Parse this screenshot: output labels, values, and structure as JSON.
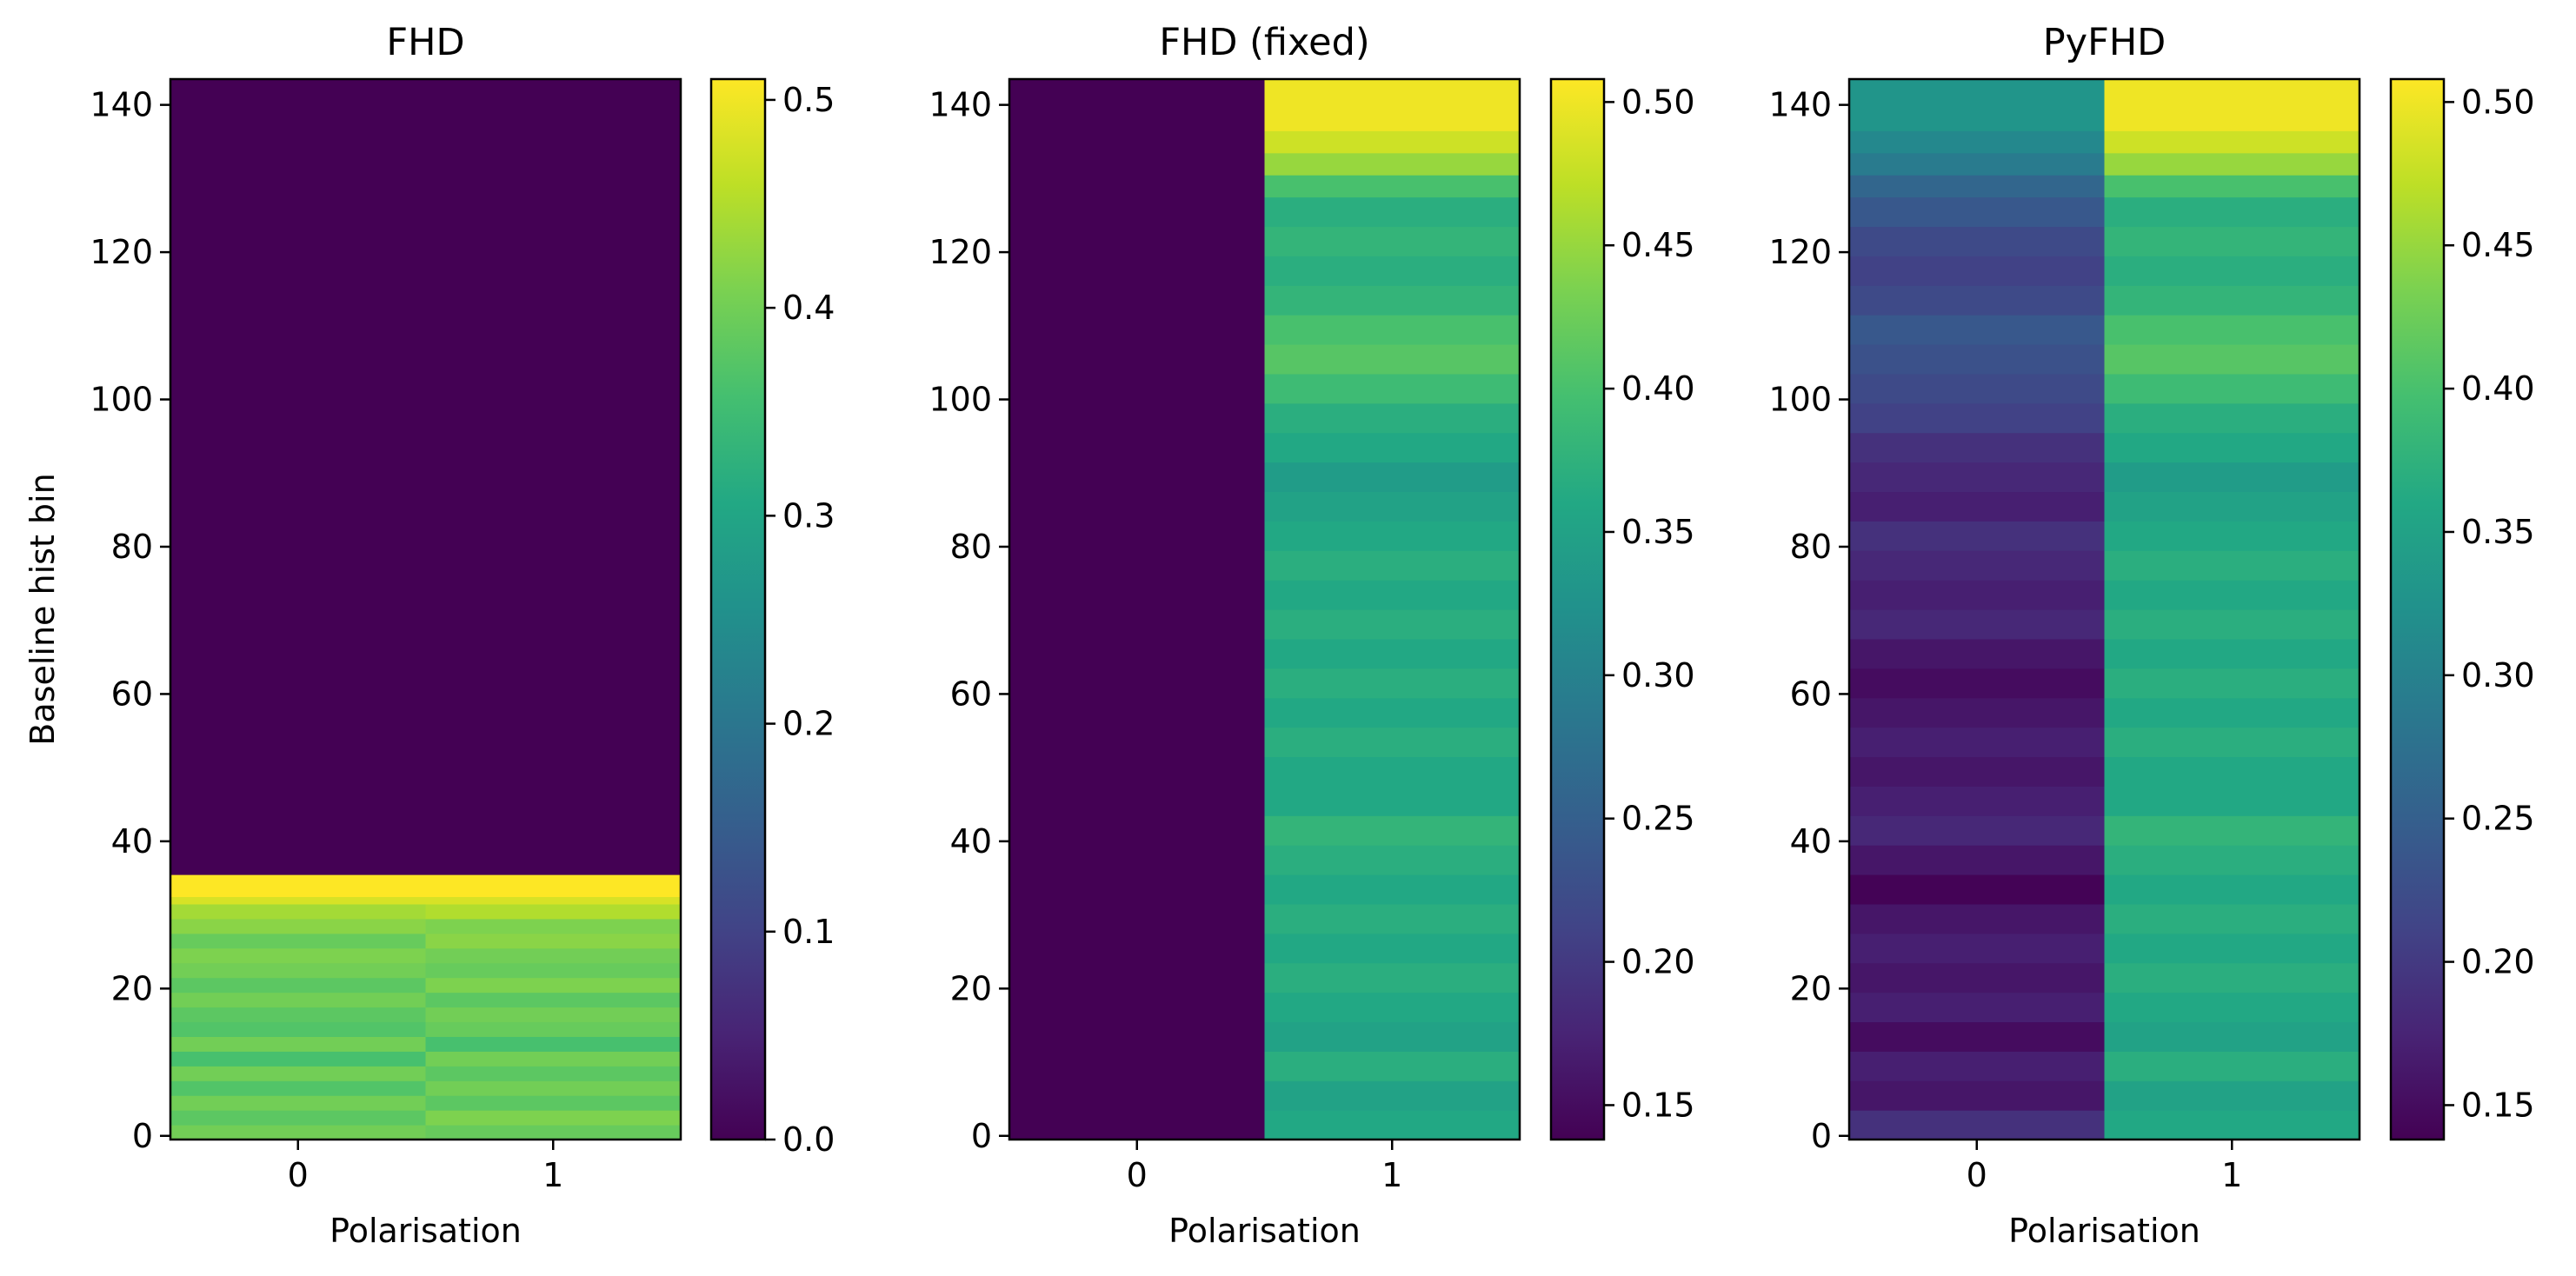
{
  "chart_data": [
    {
      "type": "heatmap",
      "title": "FHD",
      "xlabel": "Polarisation",
      "ylabel": "Baseline hist bin",
      "xticks": [
        "0",
        "1"
      ],
      "yticks": [
        "0",
        "20",
        "40",
        "60",
        "80",
        "100",
        "120",
        "140"
      ],
      "ylim": [
        -0.5,
        143.5
      ],
      "colormap": "viridis",
      "colorbar": {
        "range": [
          0.0,
          0.51
        ],
        "ticks": [
          0.0,
          0.1,
          0.2,
          0.3,
          0.4,
          0.5
        ],
        "tick_labels": [
          "0.0",
          "0.1",
          "0.2",
          "0.3",
          "0.4",
          "0.5"
        ]
      },
      "grid": false,
      "columns": [
        {
          "x": 0,
          "segments": [
            {
              "from": 0,
              "to": 2,
              "value": 0.4
            },
            {
              "from": 2,
              "to": 4,
              "value": 0.38
            },
            {
              "from": 4,
              "to": 6,
              "value": 0.4
            },
            {
              "from": 6,
              "to": 8,
              "value": 0.37
            },
            {
              "from": 8,
              "to": 10,
              "value": 0.4
            },
            {
              "from": 10,
              "to": 12,
              "value": 0.36
            },
            {
              "from": 12,
              "to": 14,
              "value": 0.4
            },
            {
              "from": 14,
              "to": 16,
              "value": 0.37
            },
            {
              "from": 16,
              "to": 18,
              "value": 0.38
            },
            {
              "from": 18,
              "to": 20,
              "value": 0.4
            },
            {
              "from": 20,
              "to": 22,
              "value": 0.38
            },
            {
              "from": 22,
              "to": 24,
              "value": 0.4
            },
            {
              "from": 24,
              "to": 26,
              "value": 0.41
            },
            {
              "from": 26,
              "to": 28,
              "value": 0.39
            },
            {
              "from": 28,
              "to": 30,
              "value": 0.42
            },
            {
              "from": 30,
              "to": 32,
              "value": 0.44
            },
            {
              "from": 32,
              "to": 33,
              "value": 0.48
            },
            {
              "from": 33,
              "to": 36,
              "value": 0.51
            },
            {
              "from": 36,
              "to": 144,
              "value": 0.0
            }
          ]
        },
        {
          "x": 1,
          "segments": [
            {
              "from": 0,
              "to": 2,
              "value": 0.39
            },
            {
              "from": 2,
              "to": 4,
              "value": 0.41
            },
            {
              "from": 4,
              "to": 6,
              "value": 0.38
            },
            {
              "from": 6,
              "to": 8,
              "value": 0.4
            },
            {
              "from": 8,
              "to": 10,
              "value": 0.38
            },
            {
              "from": 10,
              "to": 12,
              "value": 0.4
            },
            {
              "from": 12,
              "to": 14,
              "value": 0.36
            },
            {
              "from": 14,
              "to": 16,
              "value": 0.39
            },
            {
              "from": 16,
              "to": 18,
              "value": 0.4
            },
            {
              "from": 18,
              "to": 20,
              "value": 0.38
            },
            {
              "from": 20,
              "to": 22,
              "value": 0.41
            },
            {
              "from": 22,
              "to": 24,
              "value": 0.39
            },
            {
              "from": 24,
              "to": 26,
              "value": 0.4
            },
            {
              "from": 26,
              "to": 28,
              "value": 0.42
            },
            {
              "from": 28,
              "to": 30,
              "value": 0.41
            },
            {
              "from": 30,
              "to": 32,
              "value": 0.45
            },
            {
              "from": 32,
              "to": 33,
              "value": 0.48
            },
            {
              "from": 33,
              "to": 36,
              "value": 0.51
            },
            {
              "from": 36,
              "to": 144,
              "value": 0.0
            }
          ]
        }
      ]
    },
    {
      "type": "heatmap",
      "title": "FHD (fixed)",
      "xlabel": "Polarisation",
      "ylabel": "",
      "xticks": [
        "0",
        "1"
      ],
      "yticks": [
        "0",
        "20",
        "40",
        "60",
        "80",
        "100",
        "120",
        "140"
      ],
      "ylim": [
        -0.5,
        143.5
      ],
      "colormap": "viridis",
      "colorbar": {
        "range": [
          0.138,
          0.508
        ],
        "ticks": [
          0.15,
          0.2,
          0.25,
          0.3,
          0.35,
          0.4,
          0.45,
          0.5
        ],
        "tick_labels": [
          "0.15",
          "0.20",
          "0.25",
          "0.30",
          "0.35",
          "0.40",
          "0.45",
          "0.50"
        ]
      },
      "grid": false,
      "columns": [
        {
          "x": 0,
          "segments": [
            {
              "from": 0,
              "to": 144,
              "value": 0.138
            }
          ]
        },
        {
          "x": 1,
          "segments": [
            {
              "from": 0,
              "to": 4,
              "value": 0.36
            },
            {
              "from": 4,
              "to": 8,
              "value": 0.35
            },
            {
              "from": 8,
              "to": 12,
              "value": 0.37
            },
            {
              "from": 12,
              "to": 16,
              "value": 0.35
            },
            {
              "from": 16,
              "to": 20,
              "value": 0.36
            },
            {
              "from": 20,
              "to": 24,
              "value": 0.37
            },
            {
              "from": 24,
              "to": 28,
              "value": 0.36
            },
            {
              "from": 28,
              "to": 32,
              "value": 0.37
            },
            {
              "from": 32,
              "to": 36,
              "value": 0.36
            },
            {
              "from": 36,
              "to": 40,
              "value": 0.37
            },
            {
              "from": 40,
              "to": 44,
              "value": 0.38
            },
            {
              "from": 44,
              "to": 48,
              "value": 0.36
            },
            {
              "from": 48,
              "to": 52,
              "value": 0.36
            },
            {
              "from": 52,
              "to": 56,
              "value": 0.37
            },
            {
              "from": 56,
              "to": 60,
              "value": 0.36
            },
            {
              "from": 60,
              "to": 64,
              "value": 0.37
            },
            {
              "from": 64,
              "to": 68,
              "value": 0.36
            },
            {
              "from": 68,
              "to": 72,
              "value": 0.37
            },
            {
              "from": 72,
              "to": 76,
              "value": 0.36
            },
            {
              "from": 76,
              "to": 80,
              "value": 0.37
            },
            {
              "from": 80,
              "to": 84,
              "value": 0.36
            },
            {
              "from": 84,
              "to": 88,
              "value": 0.35
            },
            {
              "from": 88,
              "to": 92,
              "value": 0.34
            },
            {
              "from": 92,
              "to": 96,
              "value": 0.36
            },
            {
              "from": 96,
              "to": 100,
              "value": 0.37
            },
            {
              "from": 100,
              "to": 104,
              "value": 0.39
            },
            {
              "from": 104,
              "to": 108,
              "value": 0.41
            },
            {
              "from": 108,
              "to": 112,
              "value": 0.4
            },
            {
              "from": 112,
              "to": 116,
              "value": 0.38
            },
            {
              "from": 116,
              "to": 120,
              "value": 0.37
            },
            {
              "from": 120,
              "to": 124,
              "value": 0.38
            },
            {
              "from": 124,
              "to": 128,
              "value": 0.37
            },
            {
              "from": 128,
              "to": 131,
              "value": 0.4
            },
            {
              "from": 131,
              "to": 134,
              "value": 0.45
            },
            {
              "from": 134,
              "to": 137,
              "value": 0.48
            },
            {
              "from": 137,
              "to": 144,
              "value": 0.5
            }
          ]
        }
      ]
    },
    {
      "type": "heatmap",
      "title": "PyFHD",
      "xlabel": "Polarisation",
      "ylabel": "",
      "xticks": [
        "0",
        "1"
      ],
      "yticks": [
        "0",
        "20",
        "40",
        "60",
        "80",
        "100",
        "120",
        "140"
      ],
      "ylim": [
        -0.5,
        143.5
      ],
      "colormap": "viridis",
      "colorbar": {
        "range": [
          0.138,
          0.508
        ],
        "ticks": [
          0.15,
          0.2,
          0.25,
          0.3,
          0.35,
          0.4,
          0.45,
          0.5
        ],
        "tick_labels": [
          "0.15",
          "0.20",
          "0.25",
          "0.30",
          "0.35",
          "0.40",
          "0.45",
          "0.50"
        ]
      },
      "grid": false,
      "columns": [
        {
          "x": 0,
          "segments": [
            {
              "from": 0,
              "to": 4,
              "value": 0.19
            },
            {
              "from": 4,
              "to": 8,
              "value": 0.16
            },
            {
              "from": 8,
              "to": 12,
              "value": 0.17
            },
            {
              "from": 12,
              "to": 16,
              "value": 0.15
            },
            {
              "from": 16,
              "to": 20,
              "value": 0.17
            },
            {
              "from": 20,
              "to": 24,
              "value": 0.16
            },
            {
              "from": 24,
              "to": 28,
              "value": 0.17
            },
            {
              "from": 28,
              "to": 32,
              "value": 0.16
            },
            {
              "from": 32,
              "to": 36,
              "value": 0.14
            },
            {
              "from": 36,
              "to": 40,
              "value": 0.16
            },
            {
              "from": 40,
              "to": 44,
              "value": 0.18
            },
            {
              "from": 44,
              "to": 48,
              "value": 0.17
            },
            {
              "from": 48,
              "to": 52,
              "value": 0.16
            },
            {
              "from": 52,
              "to": 56,
              "value": 0.17
            },
            {
              "from": 56,
              "to": 60,
              "value": 0.16
            },
            {
              "from": 60,
              "to": 64,
              "value": 0.15
            },
            {
              "from": 64,
              "to": 68,
              "value": 0.16
            },
            {
              "from": 68,
              "to": 72,
              "value": 0.18
            },
            {
              "from": 72,
              "to": 76,
              "value": 0.17
            },
            {
              "from": 76,
              "to": 80,
              "value": 0.18
            },
            {
              "from": 80,
              "to": 84,
              "value": 0.19
            },
            {
              "from": 84,
              "to": 88,
              "value": 0.17
            },
            {
              "from": 88,
              "to": 92,
              "value": 0.18
            },
            {
              "from": 92,
              "to": 96,
              "value": 0.19
            },
            {
              "from": 96,
              "to": 100,
              "value": 0.21
            },
            {
              "from": 100,
              "to": 104,
              "value": 0.22
            },
            {
              "from": 104,
              "to": 108,
              "value": 0.23
            },
            {
              "from": 108,
              "to": 112,
              "value": 0.24
            },
            {
              "from": 112,
              "to": 116,
              "value": 0.22
            },
            {
              "from": 116,
              "to": 120,
              "value": 0.21
            },
            {
              "from": 120,
              "to": 124,
              "value": 0.22
            },
            {
              "from": 124,
              "to": 128,
              "value": 0.24
            },
            {
              "from": 128,
              "to": 131,
              "value": 0.26
            },
            {
              "from": 131,
              "to": 134,
              "value": 0.29
            },
            {
              "from": 134,
              "to": 137,
              "value": 0.31
            },
            {
              "from": 137,
              "to": 144,
              "value": 0.33
            }
          ]
        },
        {
          "x": 1,
          "segments": [
            {
              "from": 0,
              "to": 4,
              "value": 0.36
            },
            {
              "from": 4,
              "to": 8,
              "value": 0.35
            },
            {
              "from": 8,
              "to": 12,
              "value": 0.37
            },
            {
              "from": 12,
              "to": 16,
              "value": 0.35
            },
            {
              "from": 16,
              "to": 20,
              "value": 0.36
            },
            {
              "from": 20,
              "to": 24,
              "value": 0.37
            },
            {
              "from": 24,
              "to": 28,
              "value": 0.36
            },
            {
              "from": 28,
              "to": 32,
              "value": 0.37
            },
            {
              "from": 32,
              "to": 36,
              "value": 0.36
            },
            {
              "from": 36,
              "to": 40,
              "value": 0.37
            },
            {
              "from": 40,
              "to": 44,
              "value": 0.38
            },
            {
              "from": 44,
              "to": 48,
              "value": 0.36
            },
            {
              "from": 48,
              "to": 52,
              "value": 0.36
            },
            {
              "from": 52,
              "to": 56,
              "value": 0.37
            },
            {
              "from": 56,
              "to": 60,
              "value": 0.36
            },
            {
              "from": 60,
              "to": 64,
              "value": 0.37
            },
            {
              "from": 64,
              "to": 68,
              "value": 0.36
            },
            {
              "from": 68,
              "to": 72,
              "value": 0.37
            },
            {
              "from": 72,
              "to": 76,
              "value": 0.36
            },
            {
              "from": 76,
              "to": 80,
              "value": 0.37
            },
            {
              "from": 80,
              "to": 84,
              "value": 0.36
            },
            {
              "from": 84,
              "to": 88,
              "value": 0.35
            },
            {
              "from": 88,
              "to": 92,
              "value": 0.34
            },
            {
              "from": 92,
              "to": 96,
              "value": 0.36
            },
            {
              "from": 96,
              "to": 100,
              "value": 0.37
            },
            {
              "from": 100,
              "to": 104,
              "value": 0.39
            },
            {
              "from": 104,
              "to": 108,
              "value": 0.41
            },
            {
              "from": 108,
              "to": 112,
              "value": 0.4
            },
            {
              "from": 112,
              "to": 116,
              "value": 0.38
            },
            {
              "from": 116,
              "to": 120,
              "value": 0.37
            },
            {
              "from": 120,
              "to": 124,
              "value": 0.38
            },
            {
              "from": 124,
              "to": 128,
              "value": 0.37
            },
            {
              "from": 128,
              "to": 131,
              "value": 0.4
            },
            {
              "from": 131,
              "to": 134,
              "value": 0.45
            },
            {
              "from": 134,
              "to": 137,
              "value": 0.48
            },
            {
              "from": 137,
              "to": 144,
              "value": 0.5
            }
          ]
        }
      ]
    }
  ]
}
